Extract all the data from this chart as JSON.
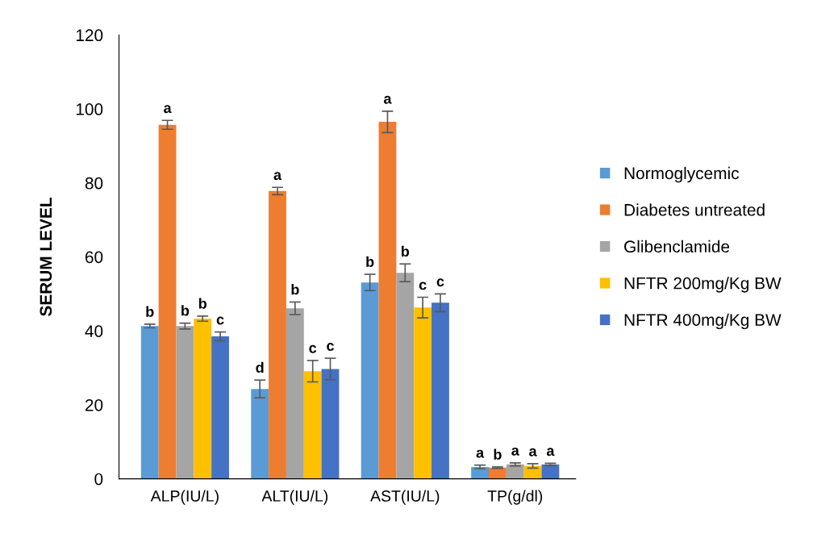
{
  "chart_data": {
    "type": "bar",
    "ylabel": "SERUM LEVEL",
    "categories": [
      "ALP(IU/L)",
      "ALT(IU/L)",
      "AST(IU/L)",
      "TP(g/dl)"
    ],
    "series": [
      {
        "name": "Normoglycemic",
        "color": "#5b9bd5",
        "values": [
          41.3,
          24.3,
          53.1,
          3.2
        ],
        "errors": [
          0.5,
          2.4,
          2.2,
          0.5
        ],
        "value_labels": [
          "b",
          "d",
          "b",
          "a"
        ]
      },
      {
        "name": "Diabetes untreated",
        "color": "#ed7d31",
        "values": [
          95.7,
          77.8,
          96.5,
          3.0
        ],
        "errors": [
          1.2,
          1.0,
          2.9,
          0.2
        ],
        "value_labels": [
          "a",
          "a",
          "a",
          "b"
        ]
      },
      {
        "name": "Glibenclamide",
        "color": "#a5a5a5",
        "values": [
          41.3,
          46.1,
          55.7,
          3.9
        ],
        "errors": [
          0.8,
          1.7,
          2.4,
          0.4
        ],
        "value_labels": [
          "b",
          "b",
          "b",
          "a"
        ]
      },
      {
        "name": "NFTR 200mg/Kg BW",
        "color": "#ffc000",
        "values": [
          43.3,
          29.1,
          46.3,
          3.5
        ],
        "errors": [
          0.7,
          2.9,
          2.8,
          0.6
        ],
        "value_labels": [
          "b",
          "c",
          "c",
          "a"
        ]
      },
      {
        "name": "NFTR 400mg/Kg BW",
        "color": "#4472c4",
        "values": [
          38.5,
          29.7,
          47.6,
          3.9
        ],
        "errors": [
          1.2,
          2.9,
          2.4,
          0.3
        ],
        "value_labels": [
          "c",
          "c",
          "c",
          "a"
        ]
      }
    ],
    "ylim": [
      0,
      120
    ],
    "yticks": [
      0,
      20,
      40,
      60,
      80,
      100,
      120
    ],
    "grid": false,
    "legend": "right"
  }
}
